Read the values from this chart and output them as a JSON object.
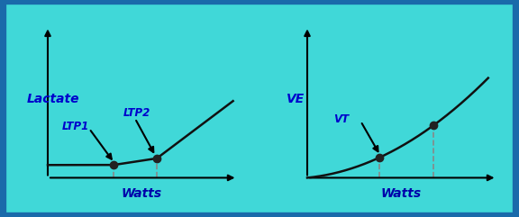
{
  "bg_color": "#40d8d8",
  "border_color": "#1a6aaa",
  "curve_color": "#111111",
  "dashed_color": "#888888",
  "point_color": "#222222",
  "text_color": "#0000cc",
  "watts_color": "#0000aa",
  "left_ylabel": "Lactate",
  "left_xlabel": "Watts",
  "right_ylabel": "VE",
  "right_xlabel": "Watts",
  "ltp1_label": "LTP1",
  "ltp2_label": "LTP2",
  "vt_label": "VT",
  "figsize": [
    5.76,
    2.41
  ],
  "dpi": 100
}
